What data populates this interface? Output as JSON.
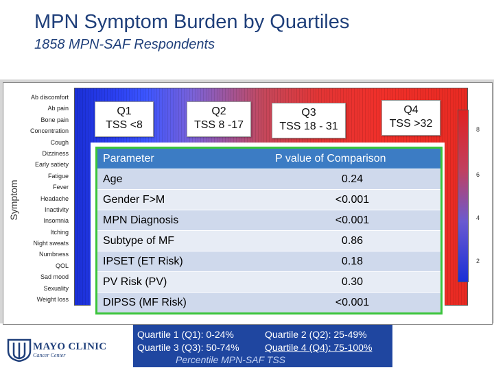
{
  "header": {
    "title": "MPN Symptom Burden by Quartiles",
    "subtitle": "1858 MPN-SAF Respondents"
  },
  "heatmap": {
    "y_axis_label": "Symptom",
    "symptoms": [
      "Ab discomfort",
      "Ab pain",
      "Bone pain",
      "Concentration",
      "Cough",
      "Dizziness",
      "Early satiety",
      "Fatigue",
      "Fever",
      "Headache",
      "Inactivity",
      "Insomnia",
      "Itching",
      "Night sweats",
      "Numbness",
      "QOL",
      "Sad mood",
      "Sexuality",
      "Weight loss"
    ],
    "colorbar_ticks": [
      "8",
      "6",
      "4",
      "2"
    ]
  },
  "quartiles": [
    {
      "label": "Q1",
      "range": "TSS <8"
    },
    {
      "label": "Q2",
      "range": "TSS 8 -17"
    },
    {
      "label": "Q3",
      "range": "TSS 18 - 31"
    },
    {
      "label": "Q4",
      "range": "TSS >32"
    }
  ],
  "table": {
    "headers": [
      "Parameter",
      "P value of Comparison"
    ],
    "rows": [
      [
        "Age",
        "0.24"
      ],
      [
        "Gender F>M",
        "<0.001"
      ],
      [
        "MPN Diagnosis",
        "<0.001"
      ],
      [
        "Subtype of MF",
        "0.86"
      ],
      [
        "IPSET (ET Risk)",
        "0.18"
      ],
      [
        "PV Risk (PV)",
        "0.30"
      ],
      [
        "DIPSS (MF Risk)",
        "<0.001"
      ]
    ]
  },
  "legend": {
    "q1": "Quartile 1 (Q1): 0-24%",
    "q2": "Quartile 2 (Q2): 25-49%",
    "q3": "Quartile 3 (Q3): 50-74%",
    "q4": "Quartile 4 (Q4): 75-100%",
    "caption": "Percentile MPN-SAF TSS"
  },
  "logo": {
    "name": "MAYO CLINIC",
    "sub": "Cancer Center"
  }
}
